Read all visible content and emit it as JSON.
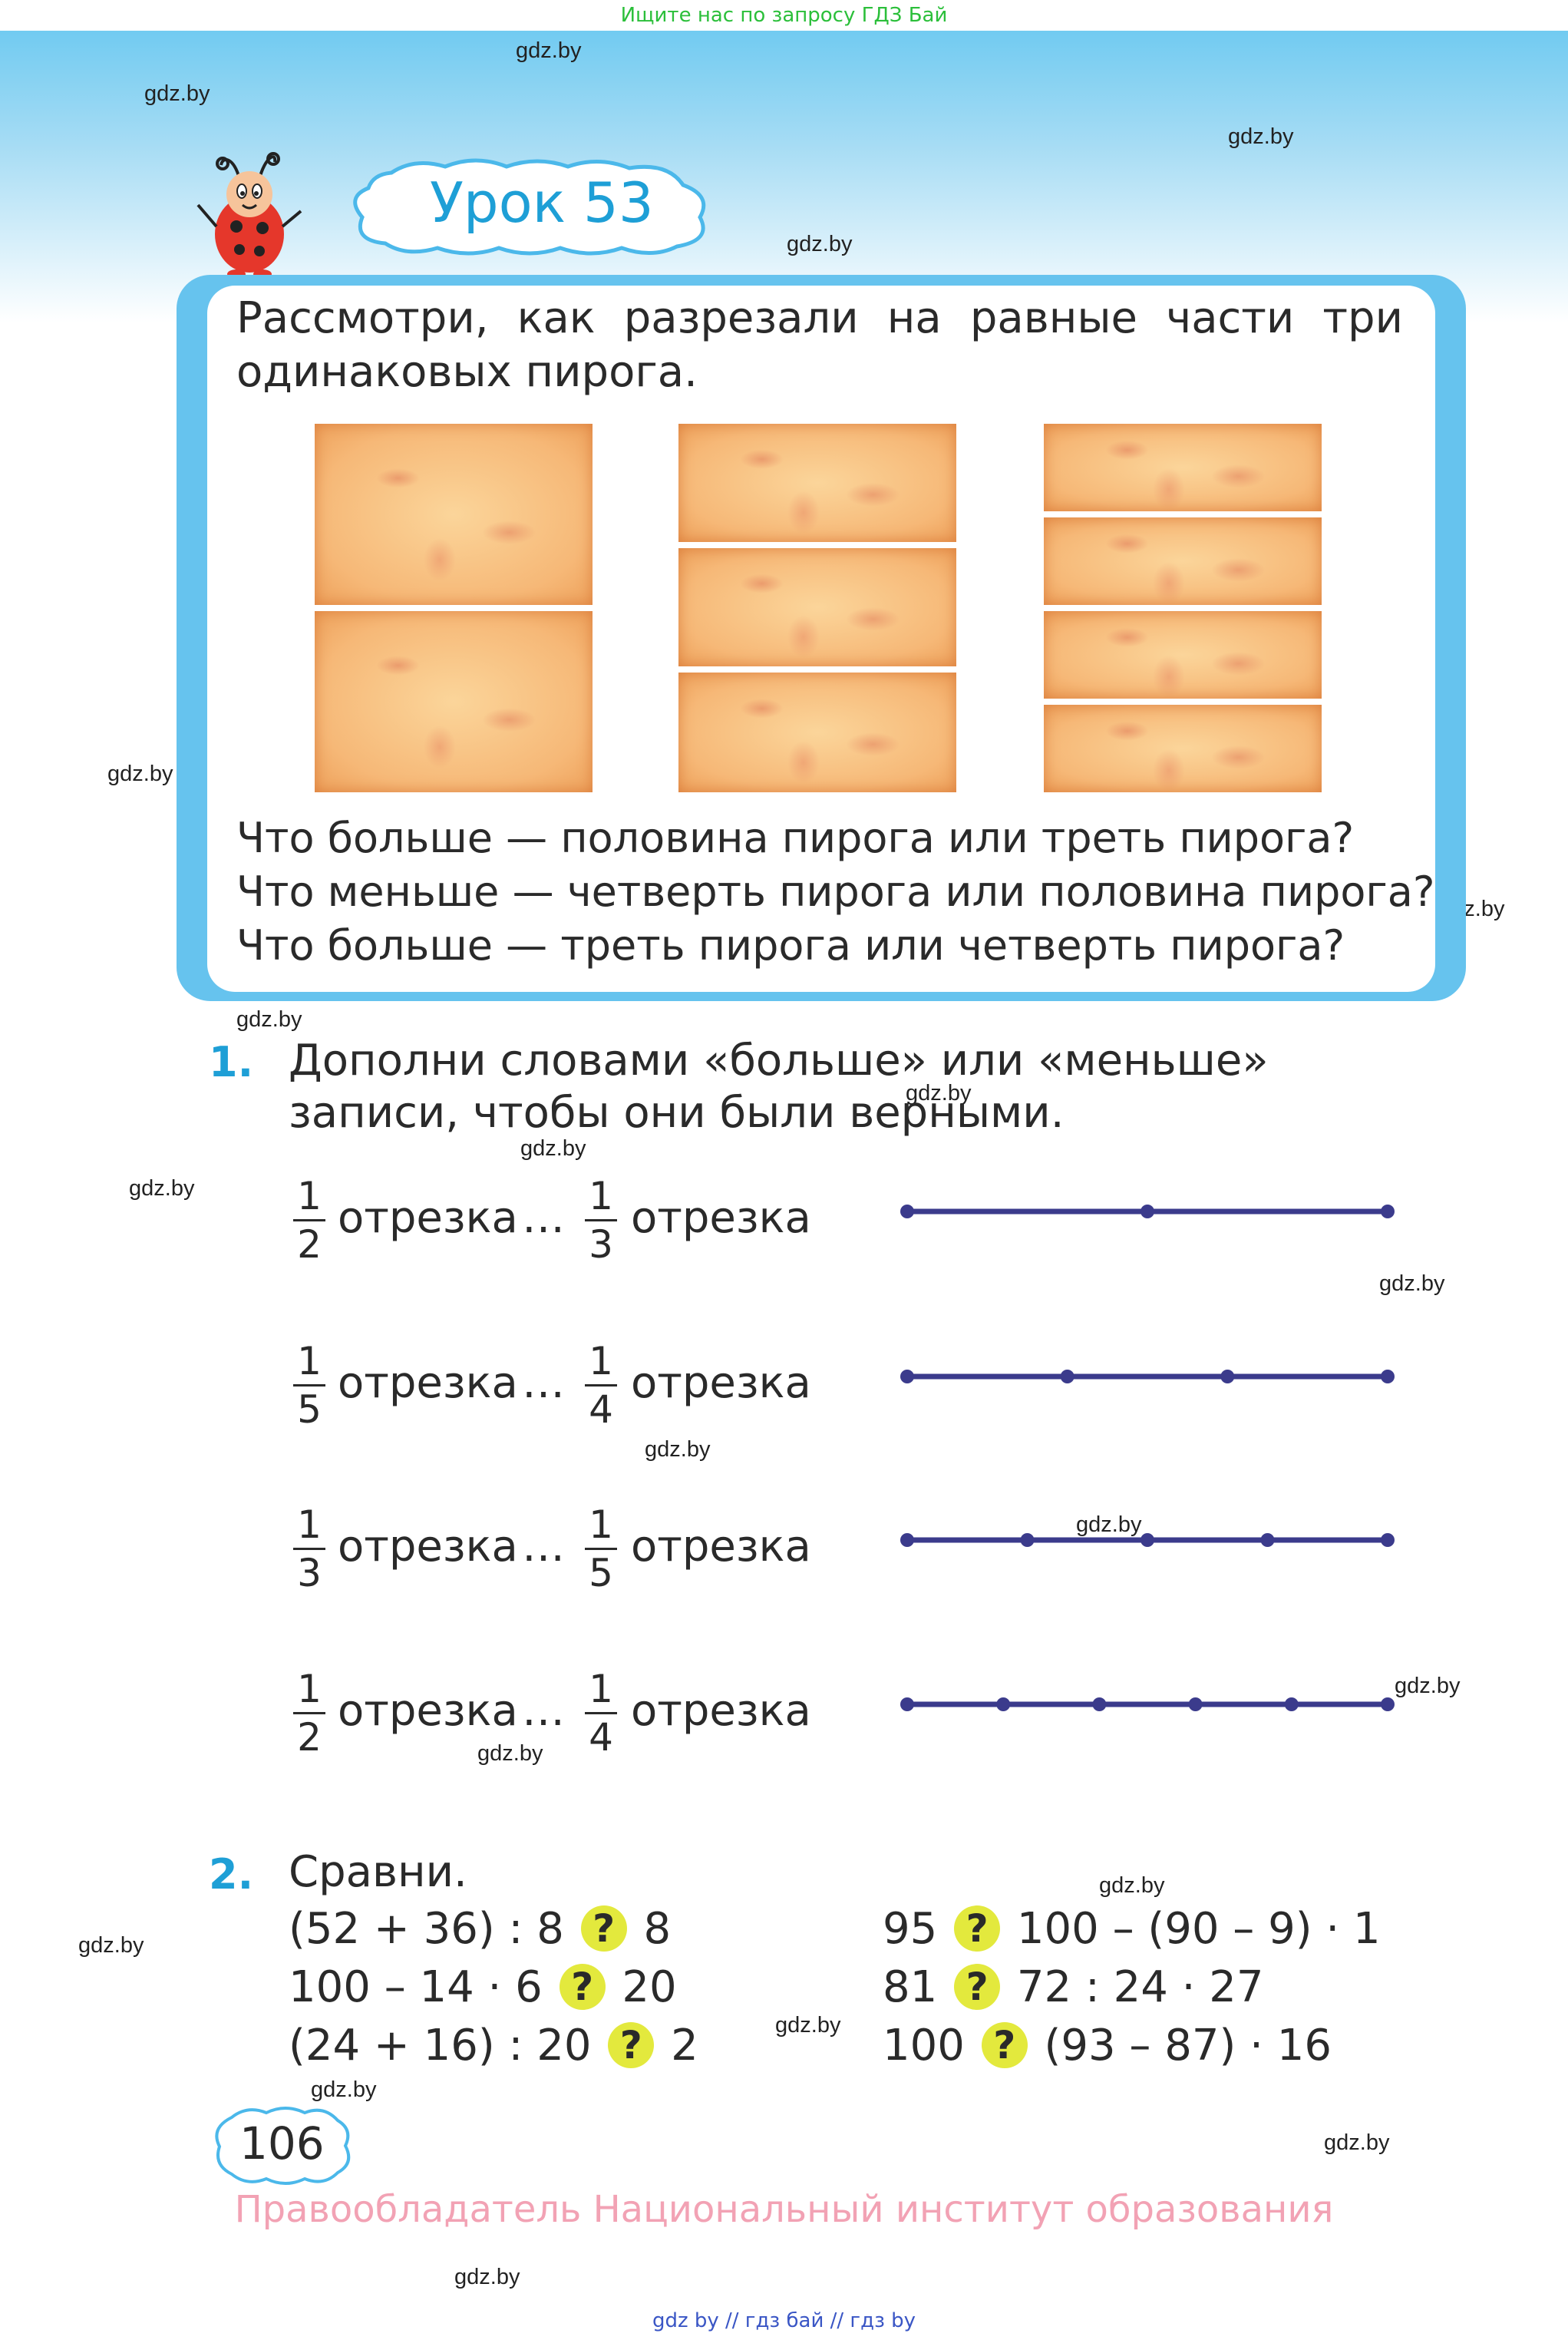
{
  "top_banner": "Ищите нас по запросу ГДЗ Бай",
  "lesson_title": "Урок 53",
  "watermark": "gdz.by",
  "intro_text": "Рассмотри, как разрезали на равные части три одинаковых пирога.",
  "questions": [
    "Что больше — половина пирога или треть пирога?",
    "Что меньше — четверть пирога или половина пирога?",
    "Что больше — треть пирога или четверть пирога?"
  ],
  "exercise1": {
    "number": "1.",
    "text": "Дополни словами «больше» или «меньше» записи, чтобы они были верными.",
    "rows": [
      {
        "a_num": "1",
        "a_den": "2",
        "b_num": "1",
        "b_den": "3",
        "word": "отрезка",
        "dots": "…",
        "segment_parts": 2
      },
      {
        "a_num": "1",
        "a_den": "5",
        "b_num": "1",
        "b_den": "4",
        "word": "отрезка",
        "dots": "…",
        "segment_parts": 3
      },
      {
        "a_num": "1",
        "a_den": "3",
        "b_num": "1",
        "b_den": "5",
        "word": "отрезка",
        "dots": "…",
        "segment_parts": 4
      },
      {
        "a_num": "1",
        "a_den": "2",
        "b_num": "1",
        "b_den": "4",
        "word": "отрезка",
        "dots": "…",
        "segment_parts": 5
      }
    ]
  },
  "exercise2": {
    "number": "2.",
    "title": "Сравни.",
    "left": [
      {
        "a": "(52 + 36) : 8",
        "q": "?",
        "b": "8"
      },
      {
        "a": "100 – 14 · 6",
        "q": "?",
        "b": "20"
      },
      {
        "a": "(24 + 16) : 20",
        "q": "?",
        "b": "2"
      }
    ],
    "right": [
      {
        "a": "95",
        "q": "?",
        "b": "100 – (90 – 9) · 1"
      },
      {
        "a": "81",
        "q": "?",
        "b": "72 : 24 · 27"
      },
      {
        "a": "100",
        "q": "?",
        "b": "(93 – 87) · 16"
      }
    ]
  },
  "page_number": "106",
  "footer_owner": "Правообладатель Национальный институт образования",
  "footer_links": "gdz by  //  гдз бай  //  гдз by",
  "colors": {
    "accent": "#1e9fd6",
    "frame": "#66c3ee",
    "segment": "#3b3b8c",
    "highlight": "#e3e93d",
    "footer": "#f2a2b4"
  }
}
